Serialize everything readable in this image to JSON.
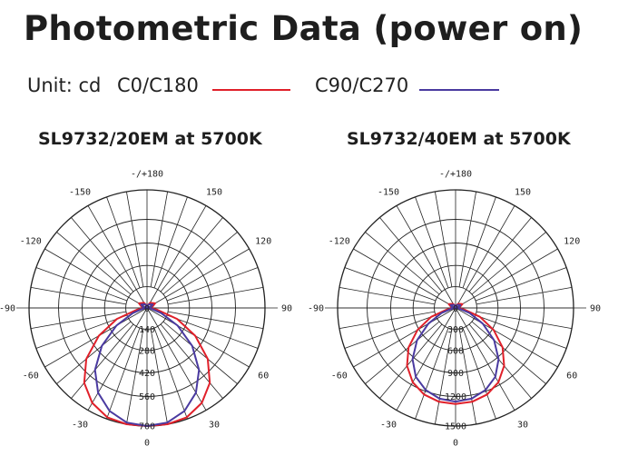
{
  "title": "Photometric Data (power on)",
  "legend": {
    "unit_label": "Unit: cd",
    "series": [
      {
        "name": "C0/C180",
        "color": "#e0202a"
      },
      {
        "name": "C90/C270",
        "color": "#4a3aa0"
      }
    ]
  },
  "chart_data": [
    {
      "type": "polar",
      "title": "SL9732/20EM at 5700K",
      "angle_labels": [
        {
          "angle": 180,
          "text": "-/+180"
        },
        {
          "angle": -150,
          "text": "-150"
        },
        {
          "angle": 150,
          "text": "150"
        },
        {
          "angle": -120,
          "text": "-120"
        },
        {
          "angle": 120,
          "text": "120"
        },
        {
          "angle": -90,
          "text": "-90"
        },
        {
          "angle": 90,
          "text": "90"
        },
        {
          "angle": -60,
          "text": "-60"
        },
        {
          "angle": 60,
          "text": "60"
        },
        {
          "angle": -30,
          "text": "-30"
        },
        {
          "angle": 30,
          "text": "30"
        },
        {
          "angle": 0,
          "text": "0"
        }
      ],
      "radial_ticks": [
        140,
        280,
        420,
        560,
        700
      ],
      "rmax": 700,
      "series": [
        {
          "name": "C0/C180",
          "color": "#e0202a",
          "angles": [
            -180,
            -150,
            -120,
            -105,
            -90,
            -80,
            -70,
            -60,
            -50,
            -40,
            -30,
            -20,
            -10,
            0,
            10,
            20,
            30,
            40,
            50,
            60,
            70,
            80,
            90,
            105,
            120,
            150,
            180
          ],
          "values": [
            12,
            35,
            55,
            35,
            5,
            60,
            190,
            330,
            470,
            580,
            650,
            690,
            700,
            700,
            700,
            690,
            650,
            580,
            470,
            330,
            190,
            60,
            5,
            35,
            55,
            35,
            12
          ]
        },
        {
          "name": "C90/C270",
          "color": "#4a3aa0",
          "angles": [
            -180,
            -150,
            -120,
            -105,
            -90,
            -80,
            -70,
            -60,
            -50,
            -40,
            -30,
            -20,
            -10,
            0,
            10,
            20,
            30,
            40,
            50,
            60,
            70,
            80,
            90,
            105,
            120,
            150,
            180
          ],
          "values": [
            10,
            25,
            40,
            25,
            4,
            25,
            90,
            210,
            350,
            480,
            580,
            650,
            690,
            700,
            690,
            650,
            580,
            480,
            350,
            210,
            90,
            25,
            4,
            25,
            40,
            25,
            10
          ]
        }
      ]
    },
    {
      "type": "polar",
      "title": "SL9732/40EM at 5700K",
      "angle_labels": [
        {
          "angle": 180,
          "text": "-/+180"
        },
        {
          "angle": -150,
          "text": "-150"
        },
        {
          "angle": 150,
          "text": "150"
        },
        {
          "angle": -120,
          "text": "-120"
        },
        {
          "angle": 120,
          "text": "120"
        },
        {
          "angle": -90,
          "text": "-90"
        },
        {
          "angle": 90,
          "text": "90"
        },
        {
          "angle": -60,
          "text": "-60"
        },
        {
          "angle": 60,
          "text": "60"
        },
        {
          "angle": -30,
          "text": "-30"
        },
        {
          "angle": 30,
          "text": "30"
        },
        {
          "angle": 0,
          "text": "0"
        }
      ],
      "radial_ticks": [
        300,
        600,
        900,
        1200,
        1500
      ],
      "rmax": 1500,
      "series": [
        {
          "name": "C0/C180",
          "color": "#e0202a",
          "angles": [
            -180,
            -150,
            -120,
            -105,
            -90,
            -80,
            -70,
            -60,
            -50,
            -40,
            -30,
            -20,
            -10,
            0,
            10,
            20,
            30,
            40,
            50,
            60,
            70,
            80,
            90,
            105,
            120,
            150,
            180
          ],
          "values": [
            20,
            60,
            100,
            60,
            10,
            110,
            330,
            560,
            780,
            960,
            1090,
            1170,
            1210,
            1220,
            1210,
            1170,
            1090,
            960,
            780,
            560,
            330,
            110,
            10,
            60,
            100,
            60,
            20
          ]
        },
        {
          "name": "C90/C270",
          "color": "#4a3aa0",
          "angles": [
            -180,
            -150,
            -120,
            -105,
            -90,
            -80,
            -70,
            -60,
            -50,
            -40,
            -30,
            -20,
            -10,
            0,
            10,
            20,
            30,
            40,
            50,
            60,
            70,
            80,
            90,
            105,
            120,
            150,
            180
          ],
          "values": [
            15,
            45,
            70,
            45,
            8,
            50,
            190,
            400,
            640,
            850,
            1010,
            1110,
            1170,
            1190,
            1170,
            1110,
            1010,
            850,
            640,
            400,
            190,
            50,
            8,
            45,
            70,
            45,
            15
          ]
        }
      ]
    }
  ]
}
